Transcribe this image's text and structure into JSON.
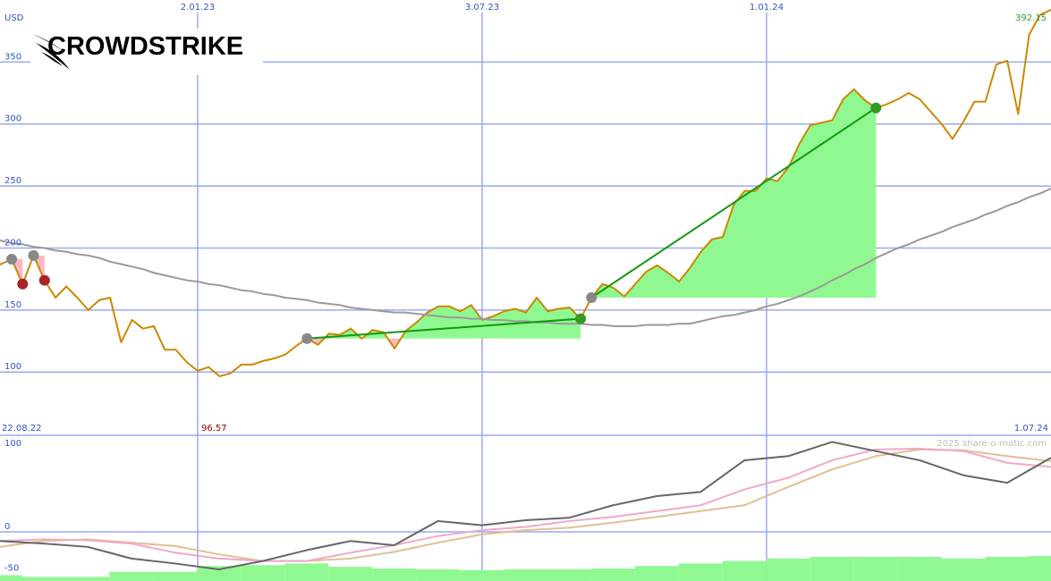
{
  "chart_data": [
    {
      "type": "line",
      "logo": "CROWDSTRIKE",
      "unit": "USD",
      "categories": [
        "22.08.22",
        null,
        null,
        null,
        null,
        null,
        null,
        null,
        null,
        null,
        null,
        null,
        null,
        null,
        null,
        null,
        null,
        null,
        null,
        "2.01.23",
        null,
        null,
        null,
        null,
        null,
        null,
        null,
        null,
        null,
        null,
        null,
        null,
        null,
        null,
        null,
        null,
        null,
        null,
        null,
        null,
        null,
        null,
        null,
        null,
        null,
        "3.07.23",
        null,
        null,
        null,
        null,
        null,
        null,
        null,
        null,
        null,
        null,
        null,
        null,
        null,
        null,
        null,
        null,
        null,
        null,
        null,
        null,
        null,
        null,
        null,
        null,
        null,
        "1.01.24",
        null,
        null,
        null,
        null,
        null,
        null,
        null,
        null,
        null,
        null,
        null,
        null,
        null,
        null,
        null,
        null,
        null,
        null,
        null,
        null,
        null,
        null,
        null,
        null,
        null,
        "1.07.24"
      ],
      "series": [
        {
          "color": "#cc8800",
          "values": [
            182,
            187,
            191,
            171,
            194,
            174,
            160,
            169,
            160,
            150,
            158,
            160,
            124,
            142,
            135,
            137,
            118,
            118,
            108,
            101,
            104,
            96.57,
            99,
            106,
            106,
            109,
            111,
            114,
            121,
            127,
            122,
            131,
            130,
            135,
            127,
            134,
            132,
            119,
            133,
            140,
            148,
            153,
            153,
            149,
            154,
            142,
            145,
            149,
            151,
            148,
            160,
            149,
            151,
            152,
            143,
            160,
            171,
            168,
            161,
            171,
            181,
            186,
            180,
            173,
            184,
            197,
            207,
            209,
            235,
            246,
            246,
            256,
            254,
            265,
            284,
            299,
            301,
            303,
            320,
            328,
            319,
            313,
            316,
            320,
            325,
            320,
            310,
            300,
            288,
            302,
            318,
            318,
            348,
            351,
            308,
            372,
            388,
            392.15
          ]
        },
        {
          "color": "#9a9a9a",
          "values": [
            207,
            206,
            204,
            203,
            201,
            200,
            198,
            197,
            195,
            194,
            192,
            189,
            187,
            185,
            183,
            180,
            178,
            176,
            174,
            173,
            171,
            170,
            168,
            166,
            165,
            163,
            162,
            160,
            159,
            158,
            156,
            155,
            154,
            152,
            151,
            150,
            149,
            148,
            148,
            147,
            146,
            145,
            144,
            144,
            143,
            143,
            142,
            142,
            141,
            141,
            140,
            140,
            139,
            139,
            139,
            138,
            138,
            137,
            137,
            137,
            138,
            138,
            138,
            139,
            139,
            141,
            143,
            145,
            146,
            148,
            150,
            153,
            155,
            158,
            161,
            165,
            169,
            174,
            178,
            183,
            187,
            192,
            196,
            200,
            203,
            207,
            210,
            213,
            217,
            220,
            223,
            227,
            230,
            234,
            237,
            241,
            244,
            248
          ]
        }
      ],
      "ylim": [
        49,
        400
      ],
      "yticks": [
        100,
        150,
        200,
        250,
        300,
        350
      ],
      "grid": true,
      "grid_color": "#99aaee",
      "annotations": {
        "low": 96.57,
        "last": 392.15
      },
      "signals": [
        {
          "from": 2,
          "to": 3
        },
        {
          "from": 4,
          "to": 5
        },
        {
          "from": 29,
          "to": 54
        },
        {
          "from": 55,
          "to": 81
        }
      ],
      "signal_colors": {
        "up_fill": "#90f890",
        "down_fill": "#f8b8c8",
        "up_marker": "#339922",
        "down_marker": "#aa2222",
        "start_marker": "#888888",
        "trend": "#119911"
      }
    },
    {
      "type": "line",
      "source": "2025 share-o-matic.com",
      "categories": [
        null,
        null,
        null,
        null,
        null,
        null,
        null,
        null,
        null,
        null,
        null,
        null,
        null,
        null,
        null,
        null,
        null,
        null,
        null,
        null,
        null,
        null,
        null,
        null,
        null
      ],
      "series": [
        {
          "type": "bar",
          "color": "#90f890",
          "values": [
            -52,
            -54,
            -54,
            -48,
            -48,
            -41,
            -40,
            -38,
            -42,
            -44,
            -45,
            -46,
            -45,
            -45,
            -44,
            -41,
            -38,
            -35,
            -32,
            -30,
            -30,
            -30,
            -32,
            -30,
            -29
          ]
        },
        {
          "color": "#e0c090",
          "values": [
            -18,
            -11,
            -9,
            -13,
            -17,
            -27,
            -35,
            -35,
            -32,
            -24,
            -13,
            -3,
            2,
            5,
            11,
            18,
            25,
            32,
            54,
            75,
            91,
            99,
            98,
            91,
            85
          ]
        },
        {
          "color": "#f0a8c8",
          "values": [
            -11,
            -9,
            -10,
            -14,
            -25,
            -32,
            -35,
            -35,
            -25,
            -16,
            -5,
            2,
            6,
            13,
            18,
            25,
            32,
            51,
            65,
            86,
            99,
            100,
            97,
            83,
            78
          ]
        },
        {
          "color": "#666666",
          "values": [
            -11,
            -14,
            -18,
            -32,
            -38,
            -45,
            -35,
            -22,
            -11,
            -16,
            13,
            8,
            14,
            17,
            32,
            43,
            48,
            86,
            91,
            108,
            97,
            86,
            68,
            59,
            89
          ]
        }
      ],
      "ylim": [
        -59,
        116
      ],
      "yticks": [
        -50,
        0,
        100
      ],
      "grid": true,
      "grid_color": "#99aaee"
    }
  ]
}
